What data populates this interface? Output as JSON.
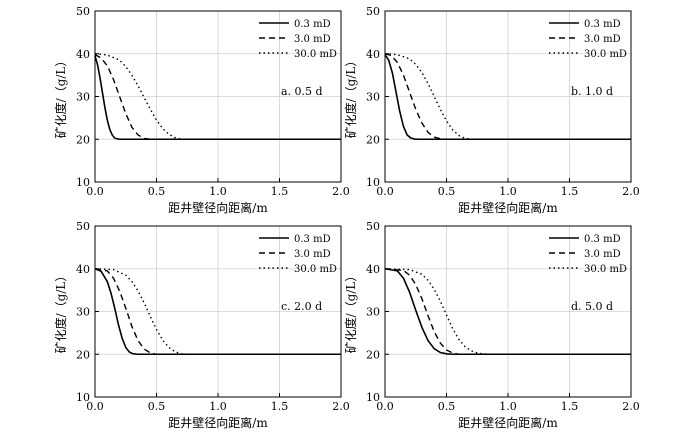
{
  "chart_data": [
    {
      "type": "line",
      "panel_label": "a.  0.5 d",
      "xlabel": "距井壁径向距离/m",
      "ylabel": "矿化度/（g/L）",
      "xlim": [
        0.0,
        2.0
      ],
      "ylim": [
        10,
        50
      ],
      "xticks": [
        "0.0",
        "0.5",
        "1.0",
        "1.5",
        "2.0"
      ],
      "yticks": [
        "10",
        "20",
        "30",
        "40",
        "50"
      ],
      "grid": true,
      "legend_position": "top-right",
      "series": [
        {
          "name": "0.3 mD",
          "style": "solid",
          "x": [
            0.0,
            0.02,
            0.04,
            0.06,
            0.08,
            0.1,
            0.12,
            0.14,
            0.16,
            0.18,
            0.2,
            0.25,
            2.0
          ],
          "y": [
            39.5,
            37.5,
            34.5,
            31.0,
            27.5,
            24.5,
            22.3,
            21.0,
            20.3,
            20.1,
            20.0,
            20.0,
            20.0
          ]
        },
        {
          "name": "3.0 mD",
          "style": "dashed",
          "x": [
            0.0,
            0.05,
            0.1,
            0.15,
            0.2,
            0.25,
            0.3,
            0.35,
            0.4,
            0.45,
            2.0
          ],
          "y": [
            39.8,
            39.0,
            37.2,
            34.0,
            30.0,
            26.0,
            22.8,
            21.0,
            20.2,
            20.0,
            20.0
          ]
        },
        {
          "name": "30.0 mD",
          "style": "dotted",
          "x": [
            0.0,
            0.1,
            0.2,
            0.25,
            0.3,
            0.35,
            0.4,
            0.45,
            0.5,
            0.55,
            0.6,
            0.65,
            0.7,
            2.0
          ],
          "y": [
            40.0,
            39.7,
            38.5,
            37.0,
            35.0,
            32.5,
            29.7,
            27.0,
            24.5,
            22.5,
            21.2,
            20.4,
            20.0,
            20.0
          ]
        }
      ]
    },
    {
      "type": "line",
      "panel_label": "b.  1.0 d",
      "xlabel": "距井壁径向距离/m",
      "ylabel": "矿化度/（g/L）",
      "xlim": [
        0.0,
        2.0
      ],
      "ylim": [
        10,
        50
      ],
      "xticks": [
        "0.0",
        "0.5",
        "1.0",
        "1.5",
        "2.0"
      ],
      "yticks": [
        "10",
        "20",
        "30",
        "40",
        "50"
      ],
      "grid": true,
      "legend_position": "top-right",
      "series": [
        {
          "name": "0.3 mD",
          "style": "solid",
          "x": [
            0.0,
            0.03,
            0.06,
            0.09,
            0.12,
            0.15,
            0.18,
            0.21,
            0.24,
            0.27,
            2.0
          ],
          "y": [
            39.8,
            38.5,
            35.5,
            31.0,
            26.5,
            23.0,
            21.0,
            20.3,
            20.05,
            20.0,
            20.0
          ]
        },
        {
          "name": "3.0 mD",
          "style": "dashed",
          "x": [
            0.0,
            0.05,
            0.1,
            0.15,
            0.2,
            0.25,
            0.3,
            0.35,
            0.4,
            0.45,
            0.5,
            2.0
          ],
          "y": [
            40.0,
            39.6,
            38.0,
            35.0,
            31.0,
            27.0,
            23.8,
            21.6,
            20.5,
            20.1,
            20.0,
            20.0
          ]
        },
        {
          "name": "30.0 mD",
          "style": "dotted",
          "x": [
            0.0,
            0.1,
            0.2,
            0.25,
            0.3,
            0.35,
            0.4,
            0.45,
            0.5,
            0.55,
            0.6,
            0.65,
            0.7,
            2.0
          ],
          "y": [
            40.0,
            39.8,
            38.8,
            37.5,
            35.6,
            33.0,
            30.0,
            27.0,
            24.3,
            22.2,
            20.9,
            20.2,
            20.0,
            20.0
          ]
        }
      ]
    },
    {
      "type": "line",
      "panel_label": "c.  2.0 d",
      "xlabel": "距井壁径向距离/m",
      "ylabel": "矿化度/（g/L）",
      "xlim": [
        0.0,
        2.0
      ],
      "ylim": [
        10,
        50
      ],
      "xticks": [
        "0.0",
        "0.5",
        "1.0",
        "1.5",
        "2.0"
      ],
      "yticks": [
        "10",
        "20",
        "30",
        "40",
        "50"
      ],
      "grid": true,
      "legend_position": "top-right",
      "series": [
        {
          "name": "0.3 mD",
          "style": "solid",
          "x": [
            0.0,
            0.05,
            0.1,
            0.13,
            0.16,
            0.19,
            0.22,
            0.25,
            0.28,
            0.31,
            0.35,
            2.0
          ],
          "y": [
            40.0,
            39.4,
            37.0,
            34.3,
            30.8,
            27.0,
            23.8,
            21.6,
            20.5,
            20.1,
            20.0,
            20.0
          ]
        },
        {
          "name": "3.0 mD",
          "style": "dashed",
          "x": [
            0.0,
            0.1,
            0.15,
            0.2,
            0.25,
            0.3,
            0.35,
            0.4,
            0.45,
            0.5,
            2.0
          ],
          "y": [
            40.0,
            39.5,
            37.8,
            34.8,
            30.8,
            26.5,
            23.2,
            21.2,
            20.3,
            20.0,
            20.0
          ]
        },
        {
          "name": "30.0 mD",
          "style": "dotted",
          "x": [
            0.0,
            0.15,
            0.25,
            0.3,
            0.35,
            0.4,
            0.45,
            0.5,
            0.55,
            0.6,
            0.65,
            0.7,
            0.75,
            2.0
          ],
          "y": [
            40.0,
            39.8,
            38.5,
            37.0,
            34.8,
            32.0,
            28.8,
            25.8,
            23.3,
            21.6,
            20.6,
            20.1,
            20.0,
            20.0
          ]
        }
      ]
    },
    {
      "type": "line",
      "panel_label": "d.  5.0 d",
      "xlabel": "距井壁径向距离/m",
      "ylabel": "矿化度/（g/L）",
      "xlim": [
        0.0,
        2.0
      ],
      "ylim": [
        10,
        50
      ],
      "xticks": [
        "0.0",
        "0.5",
        "1.0",
        "1.5",
        "2.0"
      ],
      "yticks": [
        "10",
        "20",
        "30",
        "40",
        "50"
      ],
      "grid": true,
      "legend_position": "top-right",
      "series": [
        {
          "name": "0.3 mD",
          "style": "solid",
          "x": [
            0.0,
            0.1,
            0.15,
            0.2,
            0.25,
            0.3,
            0.35,
            0.4,
            0.45,
            0.5,
            0.55,
            2.0
          ],
          "y": [
            40.0,
            39.5,
            37.8,
            34.5,
            30.3,
            26.3,
            23.2,
            21.3,
            20.4,
            20.1,
            20.0,
            20.0
          ]
        },
        {
          "name": "3.0 mD",
          "style": "dashed",
          "x": [
            0.0,
            0.15,
            0.2,
            0.25,
            0.3,
            0.35,
            0.4,
            0.45,
            0.5,
            0.55,
            0.6,
            2.0
          ],
          "y": [
            40.0,
            39.6,
            38.5,
            36.3,
            33.0,
            29.0,
            25.3,
            22.6,
            21.0,
            20.3,
            20.0,
            20.0
          ]
        },
        {
          "name": "30.0 mD",
          "style": "dotted",
          "x": [
            0.0,
            0.2,
            0.3,
            0.35,
            0.4,
            0.45,
            0.5,
            0.55,
            0.6,
            0.65,
            0.7,
            0.75,
            0.8,
            0.85,
            2.0
          ],
          "y": [
            40.0,
            39.8,
            38.7,
            37.3,
            35.2,
            32.4,
            29.2,
            26.0,
            23.5,
            21.8,
            20.8,
            20.3,
            20.05,
            20.0,
            20.0
          ]
        }
      ]
    }
  ]
}
